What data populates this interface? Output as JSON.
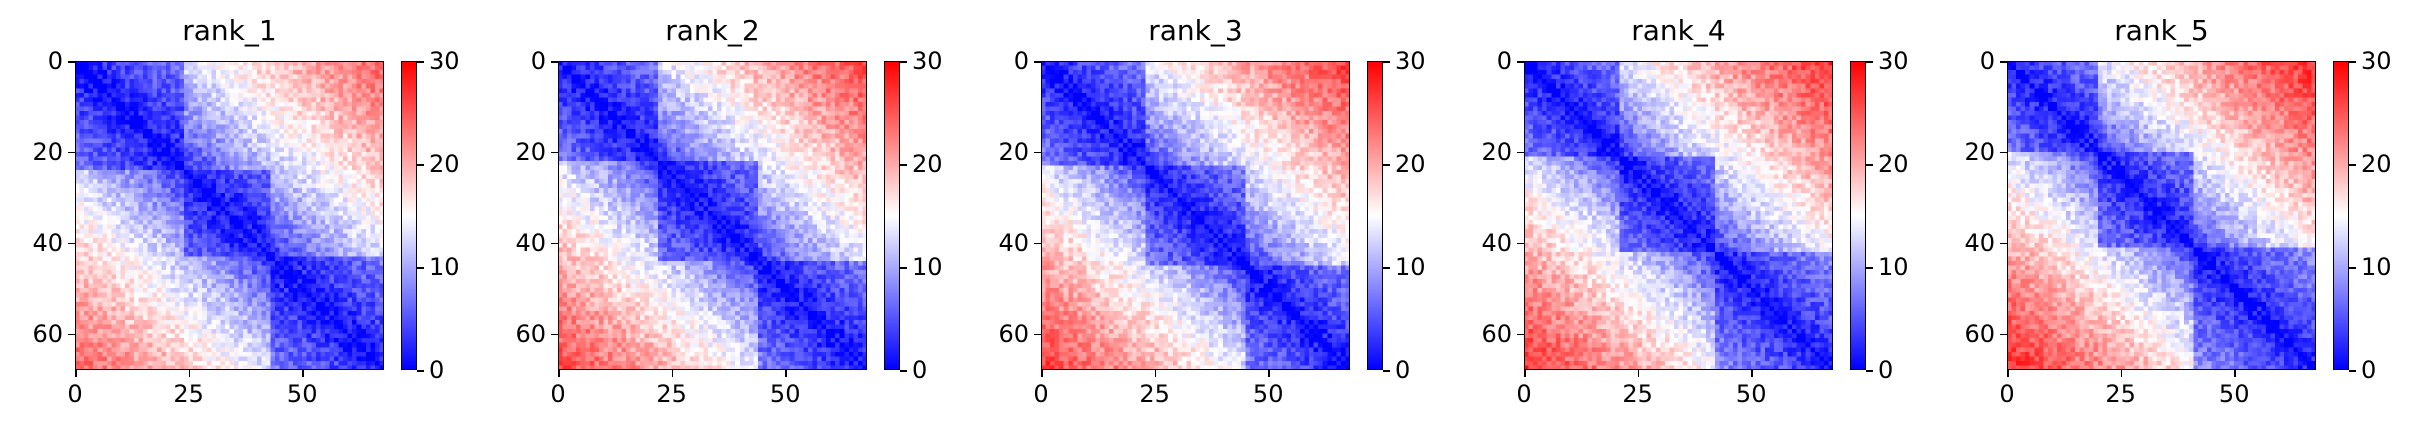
{
  "colors": {
    "low": "#0000ff",
    "mid": "#ffffff",
    "high": "#ff0000"
  },
  "chart_data": [
    {
      "type": "heatmap",
      "title": "rank_1",
      "n": 68,
      "xticks": [
        "0",
        "25",
        "50"
      ],
      "yticks": [
        "0",
        "20",
        "40",
        "60"
      ],
      "colorbar_ticks": [
        "0",
        "10",
        "20",
        "30"
      ],
      "vmin": 0,
      "vmax": 30,
      "colormap": "bwr",
      "domains": [
        [
          0,
          24
        ],
        [
          24,
          43
        ],
        [
          43,
          68
        ]
      ],
      "distance_scale": 0.55
    },
    {
      "type": "heatmap",
      "title": "rank_2",
      "n": 68,
      "xticks": [
        "0",
        "25",
        "50"
      ],
      "yticks": [
        "0",
        "20",
        "40",
        "60"
      ],
      "colorbar_ticks": [
        "0",
        "10",
        "20",
        "30"
      ],
      "vmin": 0,
      "vmax": 30,
      "colormap": "bwr",
      "domains": [
        [
          0,
          22
        ],
        [
          22,
          44
        ],
        [
          44,
          68
        ]
      ],
      "distance_scale": 0.6
    },
    {
      "type": "heatmap",
      "title": "rank_3",
      "n": 68,
      "xticks": [
        "0",
        "25",
        "50"
      ],
      "yticks": [
        "0",
        "20",
        "40",
        "60"
      ],
      "colorbar_ticks": [
        "0",
        "10",
        "20",
        "30"
      ],
      "vmin": 0,
      "vmax": 30,
      "colormap": "bwr",
      "domains": [
        [
          0,
          23
        ],
        [
          23,
          45
        ],
        [
          45,
          68
        ]
      ],
      "distance_scale": 0.62
    },
    {
      "type": "heatmap",
      "title": "rank_4",
      "n": 68,
      "xticks": [
        "0",
        "25",
        "50"
      ],
      "yticks": [
        "0",
        "20",
        "40",
        "60"
      ],
      "colorbar_ticks": [
        "0",
        "10",
        "20",
        "30"
      ],
      "vmin": 0,
      "vmax": 30,
      "colormap": "bwr",
      "domains": [
        [
          0,
          21
        ],
        [
          21,
          42
        ],
        [
          42,
          68
        ]
      ],
      "distance_scale": 0.64
    },
    {
      "type": "heatmap",
      "title": "rank_5",
      "n": 68,
      "xticks": [
        "0",
        "25",
        "50"
      ],
      "yticks": [
        "0",
        "20",
        "40",
        "60"
      ],
      "colorbar_ticks": [
        "0",
        "10",
        "20",
        "30"
      ],
      "vmin": 0,
      "vmax": 30,
      "colormap": "bwr",
      "domains": [
        [
          0,
          20
        ],
        [
          20,
          41
        ],
        [
          41,
          68
        ]
      ],
      "distance_scale": 0.66
    }
  ]
}
